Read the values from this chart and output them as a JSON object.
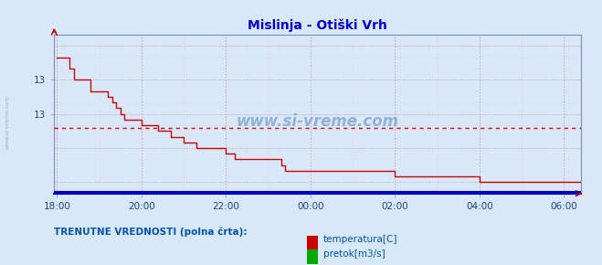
{
  "title": "Mislinja - Otiški Vrh",
  "title_color": "#0000cc",
  "title_fontsize": 10,
  "bg_color": "#d8e8f8",
  "plot_bg_color": "#d8e8f8",
  "grid_color_major": "#d0a0a0",
  "grid_color_minor": "#e8d0d0",
  "x_ticks_labels": [
    "18:00",
    "20:00",
    "22:00",
    "00:00",
    "02:00",
    "04:00",
    "06:00"
  ],
  "x_ticks_pos": [
    0,
    120,
    240,
    360,
    480,
    600,
    720
  ],
  "ylim": [
    12.1,
    13.5
  ],
  "xlim": [
    -4,
    744
  ],
  "temp_color": "#cc0000",
  "flow_color": "#0000cc",
  "avg_line_color": "#dd0000",
  "avg_line_y": 12.68,
  "watermark_text": "www.si-vreme.com",
  "watermark_color": "#5588bb",
  "watermark_alpha": 0.55,
  "side_text": "www.si-vreme.com",
  "side_color": "#5588bb",
  "legend_label_temp": "temperatura[C]",
  "legend_label_flow": "pretok[m3/s]",
  "legend_text": "TRENUTNE VREDNOSTI (polna črta):",
  "legend_color": "#0055aa",
  "temp_color_legend": "#cc0000",
  "flow_color_legend": "#00aa00",
  "temp_data_x": [
    0,
    6,
    12,
    18,
    24,
    30,
    36,
    42,
    48,
    54,
    60,
    66,
    72,
    78,
    84,
    90,
    96,
    102,
    108,
    114,
    120,
    126,
    132,
    138,
    144,
    150,
    156,
    162,
    168,
    174,
    180,
    186,
    192,
    198,
    204,
    210,
    216,
    222,
    228,
    234,
    240,
    246,
    252,
    258,
    264,
    270,
    276,
    282,
    288,
    294,
    300,
    306,
    312,
    318,
    324,
    330,
    336,
    342,
    348,
    354,
    360,
    366,
    372,
    378,
    384,
    390,
    396,
    402,
    408,
    414,
    420,
    426,
    432,
    438,
    444,
    450,
    456,
    462,
    468,
    474,
    480,
    486,
    492,
    498,
    504,
    510,
    516,
    522,
    528,
    534,
    540,
    546,
    552,
    558,
    564,
    570,
    576,
    582,
    588,
    594,
    600,
    606,
    612,
    618,
    624,
    630,
    636,
    642,
    648,
    654,
    660,
    666,
    672,
    678,
    684,
    690,
    696,
    702,
    708,
    714,
    720,
    726,
    732,
    738,
    744
  ],
  "temp_data_y": [
    13.3,
    13.3,
    13.3,
    13.2,
    13.1,
    13.1,
    13.1,
    13.1,
    13.0,
    13.0,
    13.0,
    13.0,
    12.95,
    12.9,
    12.85,
    12.8,
    12.75,
    12.75,
    12.75,
    12.75,
    12.7,
    12.7,
    12.7,
    12.7,
    12.65,
    12.65,
    12.65,
    12.6,
    12.6,
    12.6,
    12.55,
    12.55,
    12.55,
    12.5,
    12.5,
    12.5,
    12.5,
    12.5,
    12.5,
    12.5,
    12.45,
    12.45,
    12.4,
    12.4,
    12.4,
    12.4,
    12.4,
    12.4,
    12.4,
    12.4,
    12.4,
    12.4,
    12.4,
    12.35,
    12.3,
    12.3,
    12.3,
    12.3,
    12.3,
    12.3,
    12.3,
    12.3,
    12.3,
    12.3,
    12.3,
    12.3,
    12.3,
    12.3,
    12.3,
    12.3,
    12.3,
    12.3,
    12.3,
    12.3,
    12.3,
    12.3,
    12.3,
    12.3,
    12.3,
    12.3,
    12.25,
    12.25,
    12.25,
    12.25,
    12.25,
    12.25,
    12.25,
    12.25,
    12.25,
    12.25,
    12.25,
    12.25,
    12.25,
    12.25,
    12.25,
    12.25,
    12.25,
    12.25,
    12.25,
    12.25,
    12.2,
    12.2,
    12.2,
    12.2,
    12.2,
    12.2,
    12.2,
    12.2,
    12.2,
    12.2,
    12.2,
    12.2,
    12.2,
    12.2,
    12.2,
    12.2,
    12.2,
    12.2,
    12.2,
    12.2,
    12.2,
    12.2,
    12.2,
    12.2,
    12.2
  ],
  "flow_y": 12.115
}
